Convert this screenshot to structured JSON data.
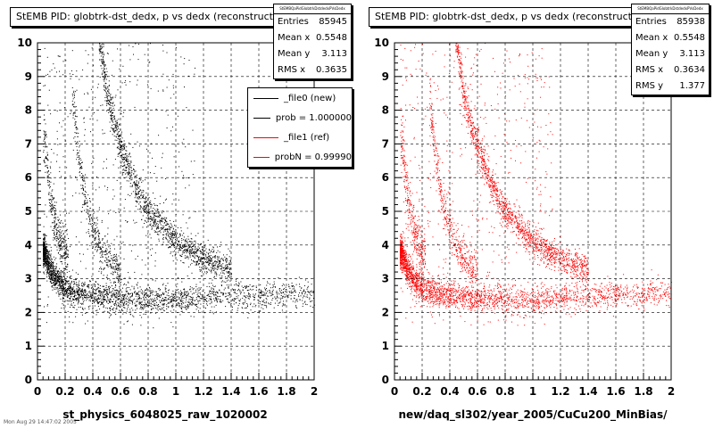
{
  "panels": [
    {
      "title": "StEMB PID: globtrk-dst_dedx,  p vs dedx (reconstructed)",
      "xlabel": "st_physics_6048025_raw_1020002",
      "color": "#000000",
      "stats": {
        "header": "StEMBQaPidGlobtrkDstdedxPVsDedx",
        "rows": [
          {
            "label": "Entries",
            "value": "85945"
          },
          {
            "label": "Mean x",
            "value": "0.5548"
          },
          {
            "label": "Mean y",
            "value": "3.113"
          },
          {
            "label": "RMS x",
            "value": "0.3635"
          }
        ]
      },
      "legend": [
        {
          "label": "_file0 (new)",
          "color": "#000000"
        },
        {
          "label": "prob = 1.000000",
          "color": "#000000"
        },
        {
          "label": "_file1 (ref)",
          "color": "#ff0000"
        },
        {
          "label": "probN = 0.99990",
          "color": "#ff0000"
        }
      ]
    },
    {
      "title": "StEMB PID: globtrk-dst_dedx,  p vs dedx (reconstructed)",
      "xlabel": "new/daq_sl302/year_2005/CuCu200_MinBias/",
      "color": "#ff0000",
      "stats": {
        "header": "StEMBQaPidGlobtrkDstdedxPVsDedx",
        "rows": [
          {
            "label": "Entries",
            "value": "85938"
          },
          {
            "label": "Mean x",
            "value": "0.5548"
          },
          {
            "label": "Mean y",
            "value": "3.113"
          },
          {
            "label": "RMS x",
            "value": "0.3634"
          },
          {
            "label": "RMS y",
            "value": "1.377"
          }
        ]
      }
    }
  ],
  "footer": "Mon Aug 29 14:47:02 2005",
  "chart_data": [
    {
      "type": "scatter",
      "title": "StEMB PID: globtrk-dst_dedx,  p vs dedx (reconstructed)",
      "xlabel": "st_physics_6048025_raw_1020002",
      "ylabel": "",
      "xlim": [
        0,
        2
      ],
      "ylim": [
        0,
        10
      ],
      "xticks": [
        "0",
        "0.2",
        "0.4",
        "0.6",
        "0.8",
        "1",
        "1.2",
        "1.4",
        "1.6",
        "1.8",
        "2"
      ],
      "yticks": [
        "0",
        "1",
        "2",
        "3",
        "4",
        "5",
        "6",
        "7",
        "8",
        "9",
        "10"
      ],
      "grid": true,
      "color": "#000000",
      "bands": [
        {
          "x": [
            0.05,
            0.1,
            0.2,
            0.4,
            0.7,
            1.0,
            1.5,
            2.0
          ],
          "y": [
            3.8,
            3.2,
            2.7,
            2.5,
            2.4,
            2.4,
            2.5,
            2.6
          ]
        },
        {
          "x": [
            0.45,
            0.5,
            0.55,
            0.6,
            0.7,
            0.8,
            1.0,
            1.2,
            1.5,
            2.0
          ],
          "y": [
            10,
            8.5,
            7.6,
            6.9,
            5.8,
            5.0,
            4.1,
            3.6,
            3.1,
            2.8
          ]
        },
        {
          "x": [
            0.25,
            0.3,
            0.35,
            0.4,
            0.5,
            0.6
          ],
          "y": [
            8.5,
            6.5,
            5.2,
            4.4,
            3.6,
            3.1
          ]
        },
        {
          "x": [
            0.05,
            0.1,
            0.15,
            0.2
          ],
          "y": [
            7.0,
            5.2,
            4.2,
            3.7
          ]
        }
      ]
    },
    {
      "type": "scatter",
      "title": "StEMB PID: globtrk-dst_dedx,  p vs dedx (reconstructed)",
      "xlabel": "new/daq_sl302/year_2005/CuCu200_MinBias/",
      "ylabel": "",
      "xlim": [
        0,
        2
      ],
      "ylim": [
        0,
        10
      ],
      "xticks": [
        "0",
        "0.2",
        "0.4",
        "0.6",
        "0.8",
        "1",
        "1.2",
        "1.4",
        "1.6",
        "1.8",
        "2"
      ],
      "yticks": [
        "0",
        "1",
        "2",
        "3",
        "4",
        "5",
        "6",
        "7",
        "8",
        "9",
        "10"
      ],
      "grid": true,
      "color": "#ff0000",
      "bands": [
        {
          "x": [
            0.05,
            0.1,
            0.2,
            0.4,
            0.7,
            1.0,
            1.5,
            2.0
          ],
          "y": [
            3.8,
            3.2,
            2.7,
            2.5,
            2.4,
            2.4,
            2.5,
            2.6
          ]
        },
        {
          "x": [
            0.45,
            0.5,
            0.55,
            0.6,
            0.7,
            0.8,
            1.0,
            1.2,
            1.5,
            2.0
          ],
          "y": [
            10,
            8.5,
            7.6,
            6.9,
            5.8,
            5.0,
            4.1,
            3.6,
            3.1,
            2.8
          ]
        },
        {
          "x": [
            0.25,
            0.3,
            0.35,
            0.4,
            0.5,
            0.6
          ],
          "y": [
            8.5,
            6.5,
            5.2,
            4.4,
            3.6,
            3.1
          ]
        },
        {
          "x": [
            0.05,
            0.1,
            0.15,
            0.2
          ],
          "y": [
            7.0,
            5.2,
            4.2,
            3.7
          ]
        }
      ]
    }
  ]
}
